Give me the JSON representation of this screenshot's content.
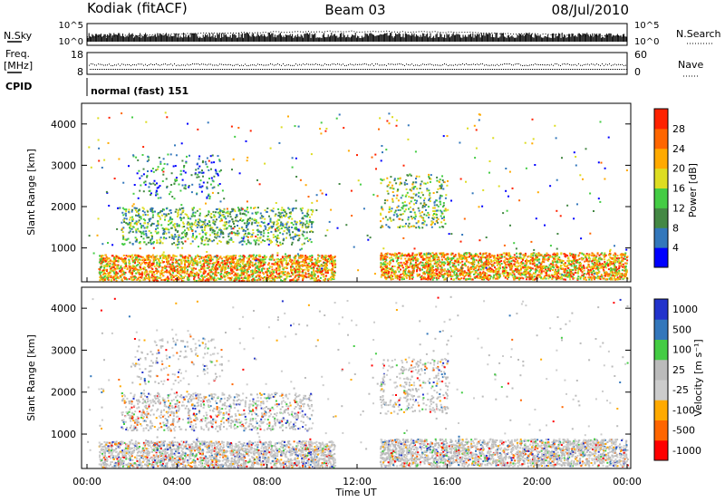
{
  "header": {
    "station": "Kodiak (fitACF)",
    "beam": "Beam 03",
    "date": "08/Jul/2010"
  },
  "panels": {
    "sky": {
      "left_label": "N.Sky",
      "right_label": "N.Search",
      "left_ticks": [
        "10^5",
        "10^0"
      ],
      "right_ticks": [
        "10^5",
        "10^0"
      ]
    },
    "freq": {
      "left_label_1": "Freq.",
      "left_label_2": "[MHz]",
      "left_ticks": [
        "18",
        "8"
      ],
      "right_label": "Nave",
      "right_ticks": [
        "60",
        "0"
      ]
    },
    "cpid": {
      "label": "CPID",
      "value": "normal (fast) 151"
    }
  },
  "colors": {
    "power": [
      "#0000ff",
      "#3377bb",
      "#448844",
      "#44cc44",
      "#dddd22",
      "#ffaa00",
      "#ff6600",
      "#ff2200"
    ],
    "velocity": [
      "#ff0000",
      "#ff6600",
      "#ffaa00",
      "#cccccc",
      "#bbbbbb",
      "#44cc44",
      "#3377bb",
      "#2233cc"
    ]
  },
  "chart_data": [
    {
      "type": "heatmap",
      "ylabel": "Slant Range [km]",
      "yticks": [
        "4000",
        "3000",
        "2000",
        "1000"
      ],
      "ylim": [
        180,
        4500
      ],
      "xlim": [
        "00:00",
        "24:00"
      ],
      "colorbar_label": "Power [dB]",
      "colorbar_ticks": [
        "28",
        "24",
        "20",
        "16",
        "12",
        "8",
        "4"
      ]
    },
    {
      "type": "heatmap",
      "ylabel": "Slant Range [km]",
      "yticks": [
        "4000",
        "3000",
        "2000",
        "1000"
      ],
      "ylim": [
        180,
        4500
      ],
      "xlim": [
        "00:00",
        "24:00"
      ],
      "colorbar_label": "Velocity [m s⁻¹]",
      "colorbar_ticks": [
        "1000",
        "500",
        "100",
        "25",
        "-25",
        "-100",
        "-500",
        "-1000"
      ]
    }
  ],
  "xaxis": {
    "label": "Time UT",
    "ticks": [
      "00:00",
      "04:00",
      "08:00",
      "12:00",
      "16:00",
      "20:00",
      "00:00"
    ]
  }
}
